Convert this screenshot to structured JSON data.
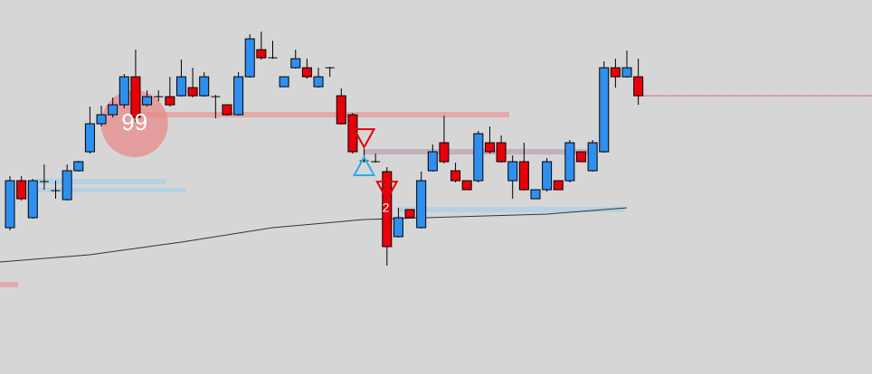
{
  "chart_data": {
    "type": "candlestick",
    "up_color": "#2f8fef",
    "down_color": "#e8000b",
    "ylim": [
      0,
      414
    ],
    "open": [
      162,
      214,
      173,
      213,
      203,
      193,
      225,
      246,
      277,
      287,
      298,
      329,
      298,
      307,
      307,
      308,
      317,
      308,
      307,
      298,
      287,
      329,
      359,
      350,
      318,
      339,
      339,
      318,
      339,
      308,
      287,
      236,
      235,
      224,
      152,
      182,
      162,
      225,
      256,
      225,
      214,
      214,
      256,
      256,
      214,
      235,
      194,
      204,
      214,
      214,
      246,
      225,
      246,
      339,
      329,
      329
    ],
    "high": [
      219,
      219,
      216,
      232,
      214,
      232,
      236,
      296,
      297,
      306,
      332,
      359,
      314,
      314,
      329,
      348,
      339,
      334,
      309,
      298,
      334,
      376,
      379,
      369,
      329,
      359,
      349,
      339,
      340,
      316,
      289,
      249,
      244,
      229,
      184,
      182,
      224,
      254,
      286,
      234,
      214,
      269,
      274,
      264,
      242,
      256,
      204,
      239,
      214,
      259,
      246,
      259,
      346,
      349,
      358,
      349
    ],
    "low": [
      159,
      192,
      172,
      204,
      194,
      192,
      224,
      244,
      274,
      284,
      294,
      279,
      296,
      302,
      296,
      307,
      306,
      307,
      283,
      286,
      286,
      328,
      348,
      349,
      318,
      338,
      327,
      317,
      329,
      276,
      244,
      234,
      234,
      120,
      151,
      173,
      161,
      224,
      233,
      212,
      204,
      212,
      244,
      234,
      194,
      203,
      194,
      202,
      204,
      212,
      235,
      224,
      245,
      317,
      328,
      298
    ],
    "close": [
      214,
      194,
      214,
      213,
      203,
      225,
      235,
      277,
      287,
      298,
      329,
      284,
      307,
      307,
      298,
      329,
      308,
      329,
      307,
      287,
      329,
      371,
      350,
      350,
      329,
      349,
      329,
      329,
      339,
      277,
      246,
      236,
      235,
      141,
      173,
      173,
      214,
      246,
      235,
      214,
      204,
      266,
      246,
      235,
      235,
      204,
      204,
      235,
      204,
      256,
      235,
      256,
      339,
      329,
      339,
      308
    ],
    "moving_average": {
      "color": "#333333",
      "x": [
        -0.9,
        7,
        15,
        23,
        31,
        39,
        47,
        54
      ],
      "values": [
        124,
        132,
        146,
        162,
        171,
        174,
        177,
        184
      ]
    },
    "zones": [
      {
        "color": "#e79a9a",
        "x": [
          10.9,
          43.7
        ],
        "y": [
          284,
          290
        ]
      },
      {
        "color": "#e79a9a",
        "x": [
          -0.9,
          0.7
        ],
        "y": [
          96,
          102
        ]
      },
      {
        "color": "#a9cfe6",
        "x": [
          2.3,
          13.7
        ],
        "y": [
          210,
          216
        ]
      },
      {
        "color": "#a9cfe6",
        "x": [
          2.3,
          15.4
        ],
        "y": [
          201,
          206
        ]
      },
      {
        "color": "#b9a3b6",
        "x": [
          31,
          50.6
        ],
        "y": [
          243,
          249
        ]
      },
      {
        "color": "#a9cfe6",
        "x": [
          34,
          53.8
        ],
        "y": [
          179,
          185
        ]
      }
    ],
    "level": {
      "color": "#e8000b",
      "y": 308
    },
    "bubble": {
      "text": "99",
      "x": 10.9,
      "y": 277,
      "color": "#e88a8a"
    },
    "count_label": {
      "text": "2",
      "x": 32.9,
      "y": 183
    },
    "signals": [
      {
        "direction": "down",
        "color": "#e8000b",
        "x": 31,
        "y": 262
      },
      {
        "direction": "up",
        "color": "#2aaee8",
        "x": 31,
        "y": 229
      },
      {
        "direction": "down",
        "color": "#e8000b",
        "x": 33,
        "y": 204
      }
    ]
  }
}
